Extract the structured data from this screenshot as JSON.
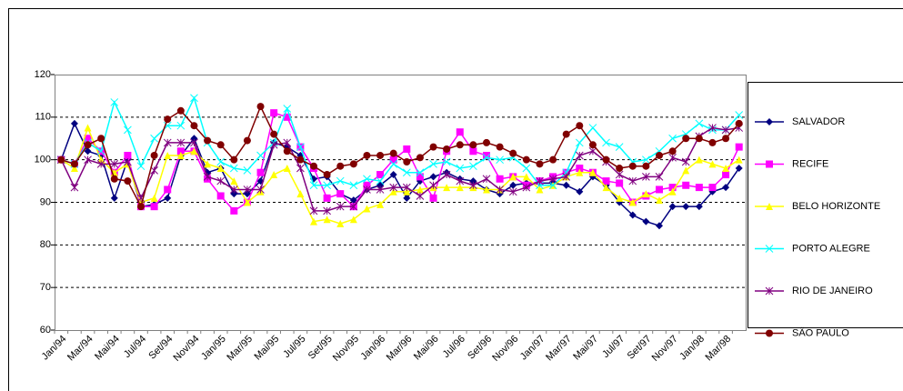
{
  "chart_data": {
    "type": "line",
    "categories": [
      "Jan/94",
      null,
      "Mar/94",
      null,
      "Mai/94",
      null,
      "Jul/94",
      null,
      "Set/94",
      null,
      "Nov/94",
      null,
      "Jan/95",
      null,
      "Mar/95",
      null,
      "Mai/95",
      null,
      "Jul/95",
      null,
      "Set/95",
      null,
      "Nov/95",
      null,
      "Jan/96",
      null,
      "Mar/96",
      null,
      "Mai/96",
      null,
      "Jul/96",
      null,
      "Set/96",
      null,
      "Nov/96",
      null,
      "Jan/97",
      null,
      "Mar/97",
      null,
      "Mai/97",
      null,
      "Jul/97",
      null,
      "Set/97",
      null,
      "Nov/97",
      null,
      "Jan/98",
      null,
      "Mar/98",
      null
    ],
    "ylim": [
      60,
      120
    ],
    "yticks": [
      60,
      70,
      80,
      90,
      100,
      110,
      120
    ],
    "grid": true,
    "legend": "right",
    "series": [
      {
        "name": "SALVADOR",
        "color": "#000080",
        "marker": "diamond",
        "values": [
          100,
          108.5,
          102,
          101,
          91,
          100,
          89,
          89.5,
          91,
          101,
          105,
          97,
          98,
          92,
          92,
          95,
          104,
          103,
          101,
          95.5,
          96,
          92,
          90.5,
          93,
          94,
          96.5,
          91,
          95,
          96,
          97,
          95.5,
          95,
          93,
          92,
          94,
          94.5,
          94.5,
          94.5,
          94,
          92.5,
          96,
          94,
          90,
          87,
          85.5,
          84.5,
          89,
          89,
          89,
          92.5,
          93.5,
          98
        ]
      },
      {
        "name": "RECIFE",
        "color": "#ff00ff",
        "marker": "square",
        "values": [
          100,
          99,
          105,
          102,
          97,
          101,
          89,
          89,
          93,
          102,
          102,
          95.5,
          91.5,
          88,
          90,
          97,
          111,
          110,
          103,
          98,
          91,
          92,
          89,
          94,
          96.5,
          100,
          102.5,
          96,
          91,
          102,
          106.5,
          102,
          101,
          95.5,
          96,
          94,
          95,
          96,
          97,
          98,
          97,
          95,
          94.5,
          90,
          91.5,
          93,
          93.5,
          94,
          93.5,
          93.5,
          96.5,
          103
        ]
      },
      {
        "name": "BELO HORIZONTE",
        "color": "#ffff00",
        "marker": "triangle",
        "values": [
          100,
          98,
          107.5,
          100,
          97,
          99,
          90,
          91,
          101,
          101,
          102,
          99,
          98,
          95,
          90,
          92.5,
          96.5,
          98,
          92,
          85.5,
          86,
          85,
          86,
          88.5,
          89.5,
          92.5,
          92.5,
          93,
          93.5,
          93.5,
          93.5,
          93.5,
          93,
          93,
          96,
          96,
          93,
          94,
          96,
          97,
          97,
          93.5,
          91,
          90,
          92,
          90.5,
          92.5,
          97.5,
          100,
          99,
          98,
          100
        ]
      },
      {
        "name": "PORTO ALEGRE",
        "color": "#00ffff",
        "marker": "x",
        "values": [
          100,
          99,
          104,
          102,
          113.5,
          107,
          98.5,
          105,
          108,
          108,
          114.5,
          104,
          99.5,
          98,
          97.5,
          101,
          104,
          112,
          103,
          94,
          94,
          95,
          94,
          95.5,
          95,
          99,
          97,
          97,
          99,
          99.5,
          98,
          98.5,
          100.5,
          100,
          100.5,
          98,
          94,
          94,
          97,
          104,
          107.5,
          104,
          103,
          99.5,
          100,
          102,
          105,
          106,
          108.5,
          107,
          107,
          110.5
        ]
      },
      {
        "name": "RIO DE JANEIRO",
        "color": "#800080",
        "marker": "star",
        "values": [
          100,
          93.5,
          100,
          99,
          99,
          99.5,
          91,
          97.5,
          104,
          104,
          104,
          96,
          95,
          93,
          93,
          93,
          103.5,
          104,
          98,
          88,
          88,
          89,
          89,
          93,
          93,
          93.5,
          93.5,
          91.5,
          94,
          96.5,
          95,
          94,
          95.5,
          93,
          92.5,
          93.5,
          95,
          95.5,
          96,
          101,
          102,
          99.5,
          96.5,
          95,
          96,
          96,
          100.5,
          99.5,
          105.5,
          107.5,
          107,
          107.5
        ]
      },
      {
        "name": "SÃO PAULO",
        "color": "#800000",
        "marker": "circle",
        "values": [
          100,
          99,
          103.5,
          105,
          95.5,
          95,
          89,
          101,
          109.5,
          111.5,
          108,
          104.5,
          103.5,
          100,
          104.5,
          112.5,
          106,
          102,
          100,
          98.5,
          96.5,
          98.5,
          99,
          101,
          101,
          101.5,
          99.5,
          100.5,
          103,
          102.5,
          103.5,
          103.5,
          104,
          103,
          101.5,
          100,
          99,
          100,
          106,
          108,
          103.5,
          100,
          98,
          98.5,
          98.5,
          101,
          102,
          105,
          105,
          104,
          105,
          108.5
        ]
      }
    ]
  }
}
